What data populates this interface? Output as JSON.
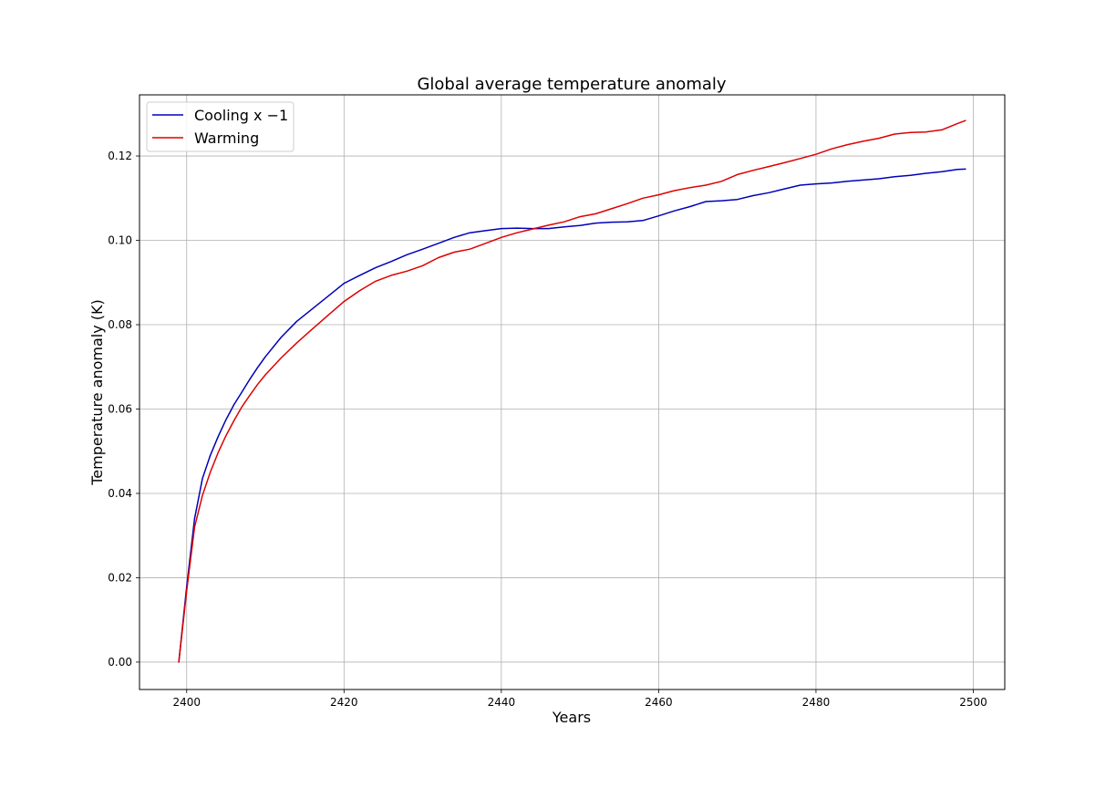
{
  "chart_data": {
    "type": "line",
    "title": "Global average temperature anomaly",
    "xlabel": "Years",
    "ylabel": "Temperature anomaly (K)",
    "xlim": [
      2394,
      2504
    ],
    "ylim": [
      -0.0065,
      0.1345
    ],
    "xticks": [
      2400,
      2420,
      2440,
      2460,
      2480,
      2500
    ],
    "yticks": [
      0.0,
      0.02,
      0.04,
      0.06,
      0.08,
      0.1,
      0.12
    ],
    "ytick_labels": [
      "0.00",
      "0.02",
      "0.04",
      "0.06",
      "0.08",
      "0.10",
      "0.12"
    ],
    "grid": true,
    "legend": "top-left",
    "series": [
      {
        "name": "Cooling x −1",
        "color": "#0000bb",
        "x": [
          2399,
          2400,
          2401,
          2402,
          2403,
          2404,
          2405,
          2406,
          2407,
          2408,
          2409,
          2410,
          2412,
          2414,
          2416,
          2418,
          2420,
          2422,
          2424,
          2426,
          2428,
          2430,
          2432,
          2434,
          2436,
          2438,
          2440,
          2442,
          2444,
          2446,
          2448,
          2450,
          2452,
          2454,
          2456,
          2458,
          2460,
          2462,
          2464,
          2466,
          2468,
          2470,
          2472,
          2474,
          2476,
          2478,
          2480,
          2482,
          2484,
          2486,
          2488,
          2490,
          2492,
          2494,
          2496,
          2498,
          2499
        ],
        "y": [
          0.0,
          0.018,
          0.034,
          0.0435,
          0.049,
          0.0535,
          0.0575,
          0.061,
          0.064,
          0.067,
          0.0698,
          0.0724,
          0.077,
          0.0808,
          0.0838,
          0.0868,
          0.0898,
          0.0917,
          0.0935,
          0.095,
          0.0966,
          0.0979,
          0.0993,
          0.1007,
          0.1018,
          0.1023,
          0.1028,
          0.1029,
          0.1028,
          0.1028,
          0.1032,
          0.1035,
          0.1041,
          0.1043,
          0.1044,
          0.1047,
          0.1058,
          0.107,
          0.108,
          0.1092,
          0.1094,
          0.1097,
          0.1106,
          0.1113,
          0.1122,
          0.1131,
          0.1134,
          0.1136,
          0.114,
          0.1143,
          0.1146,
          0.1151,
          0.1154,
          0.1159,
          0.1163,
          0.1168,
          0.1169
        ]
      },
      {
        "name": "Warming",
        "color": "#dd0000",
        "x": [
          2399,
          2400,
          2401,
          2402,
          2403,
          2404,
          2405,
          2406,
          2407,
          2408,
          2409,
          2410,
          2412,
          2414,
          2416,
          2418,
          2420,
          2422,
          2424,
          2426,
          2428,
          2430,
          2432,
          2434,
          2436,
          2438,
          2440,
          2442,
          2444,
          2446,
          2448,
          2450,
          2452,
          2454,
          2456,
          2458,
          2460,
          2462,
          2464,
          2466,
          2468,
          2470,
          2472,
          2474,
          2476,
          2478,
          2480,
          2482,
          2484,
          2486,
          2488,
          2490,
          2492,
          2494,
          2496,
          2498,
          2499
        ],
        "y": [
          0.0,
          0.017,
          0.032,
          0.0395,
          0.045,
          0.0497,
          0.0537,
          0.0572,
          0.0605,
          0.0632,
          0.0658,
          0.0681,
          0.0721,
          0.0757,
          0.079,
          0.0823,
          0.0855,
          0.0881,
          0.0903,
          0.0917,
          0.0927,
          0.094,
          0.0959,
          0.0972,
          0.0979,
          0.0993,
          0.1007,
          0.1018,
          0.1027,
          0.1036,
          0.1044,
          0.1056,
          0.1063,
          0.1075,
          0.1087,
          0.11,
          0.1108,
          0.1118,
          0.1125,
          0.1131,
          0.114,
          0.1156,
          0.1166,
          0.1175,
          0.1184,
          0.1194,
          0.1204,
          0.1217,
          0.1227,
          0.1235,
          0.1242,
          0.1252,
          0.1256,
          0.1257,
          0.1262,
          0.1277,
          0.1284
        ]
      }
    ]
  }
}
